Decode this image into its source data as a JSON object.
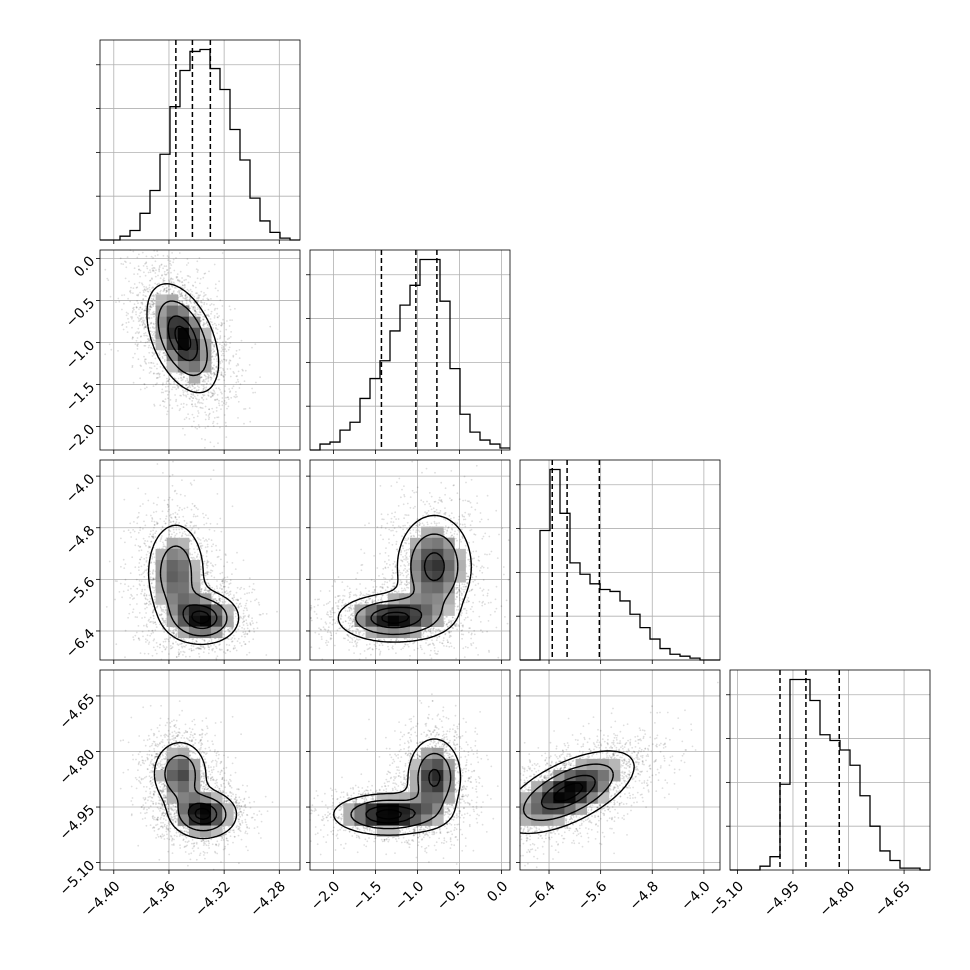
{
  "chart_data": {
    "type": "corner",
    "title": "",
    "grid": true,
    "n_params": 4,
    "ranges": [
      [
        -4.41,
        -4.265
      ],
      [
        -2.28,
        0.1
      ],
      [
        -6.85,
        -3.75
      ],
      [
        -5.12,
        -4.58
      ]
    ],
    "x_tick_labels": [
      [
        "−4.40",
        "−4.36",
        "−4.32",
        "−4.28"
      ],
      [
        "−2.0",
        "−1.5",
        "−1.0",
        "−0.5",
        "0.0"
      ],
      [
        "−6.4",
        "−5.6",
        "−4.8",
        "−4.0"
      ],
      [
        "−5.10",
        "−4.95",
        "−4.80",
        "−4.65"
      ]
    ],
    "x_tick_values": [
      [
        -4.4,
        -4.36,
        -4.32,
        -4.28
      ],
      [
        -2.0,
        -1.5,
        -1.0,
        -0.5,
        0.0
      ],
      [
        -6.4,
        -5.6,
        -4.8,
        -4.0
      ],
      [
        -5.1,
        -4.95,
        -4.8,
        -4.65
      ]
    ],
    "y_tick_labels": [
      [],
      [
        "0.0",
        "−0.5",
        "−1.0",
        "−1.5",
        "−2.0"
      ],
      [
        "−4.0",
        "−4.8",
        "−5.6",
        "−6.4"
      ],
      [
        "−4.65",
        "−4.80",
        "−4.95",
        "−5.10"
      ]
    ],
    "y_tick_values": [
      [],
      [
        0.0,
        -0.5,
        -1.0,
        -1.5,
        -2.0
      ],
      [
        -4.0,
        -4.8,
        -5.6,
        -6.4
      ],
      [
        -4.65,
        -4.8,
        -4.95,
        -5.1
      ]
    ],
    "quantiles": [
      [
        -4.355,
        -4.343,
        -4.33
      ],
      [
        -1.43,
        -1.02,
        -0.77
      ],
      [
        -6.35,
        -6.12,
        -5.62
      ],
      [
        -4.985,
        -4.915,
        -4.825
      ]
    ],
    "histograms": [
      {
        "edges": [
          -4.41,
          -4.265
        ],
        "counts": [
          0,
          0,
          2,
          5,
          14,
          26,
          45,
          70,
          89,
          99,
          100,
          90,
          79,
          58,
          42,
          22,
          10,
          4,
          1,
          0
        ]
      },
      {
        "edges": [
          -2.28,
          0.1
        ],
        "counts": [
          0,
          3,
          4,
          10,
          14,
          26,
          36,
          45,
          60,
          73,
          83,
          96,
          96,
          75,
          41,
          18,
          9,
          5,
          3,
          1
        ]
      },
      {
        "edges": [
          -6.85,
          -3.75
        ],
        "counts": [
          0,
          0,
          68,
          100,
          77,
          51,
          45,
          40,
          37,
          36,
          31,
          24,
          17,
          11,
          6,
          3,
          2,
          1,
          0,
          0
        ]
      },
      {
        "edges": [
          -5.12,
          -4.58
        ],
        "counts": [
          0,
          0,
          0,
          2,
          7,
          45,
          100,
          100,
          89,
          71,
          68,
          63,
          55,
          39,
          23,
          10,
          5,
          1,
          1,
          0
        ]
      }
    ],
    "density_2d": [
      {
        "i": 1,
        "j": 0,
        "corr": -0.45,
        "modes": [
          {
            "x": -4.35,
            "y": -0.95,
            "sx": 0.014,
            "sy": 0.35,
            "w": 1.0
          }
        ]
      },
      {
        "i": 2,
        "j": 0,
        "corr": 0.0,
        "modes": [
          {
            "x": -4.355,
            "y": -5.5,
            "sx": 0.012,
            "sy": 0.45,
            "w": 0.55
          },
          {
            "x": -4.335,
            "y": -6.2,
            "sx": 0.014,
            "sy": 0.22,
            "w": 0.75
          }
        ]
      },
      {
        "i": 2,
        "j": 1,
        "corr": 0.0,
        "modes": [
          {
            "x": -0.8,
            "y": -5.4,
            "sx": 0.25,
            "sy": 0.45,
            "w": 0.6
          },
          {
            "x": -1.3,
            "y": -6.2,
            "sx": 0.35,
            "sy": 0.2,
            "w": 0.7
          }
        ]
      },
      {
        "i": 3,
        "j": 0,
        "corr": 0.0,
        "modes": [
          {
            "x": -4.352,
            "y": -4.86,
            "sx": 0.011,
            "sy": 0.05,
            "w": 0.6
          },
          {
            "x": -4.335,
            "y": -4.97,
            "sx": 0.013,
            "sy": 0.035,
            "w": 0.8
          }
        ]
      },
      {
        "i": 3,
        "j": 1,
        "corr": 0.0,
        "modes": [
          {
            "x": -0.8,
            "y": -4.87,
            "sx": 0.18,
            "sy": 0.06,
            "w": 0.6
          },
          {
            "x": -1.35,
            "y": -4.97,
            "sx": 0.35,
            "sy": 0.03,
            "w": 0.75
          }
        ]
      },
      {
        "i": 3,
        "j": 2,
        "corr": 0.62,
        "modes": [
          {
            "x": -6.1,
            "y": -4.91,
            "sx": 0.55,
            "sy": 0.06,
            "w": 1.0
          }
        ]
      }
    ]
  }
}
